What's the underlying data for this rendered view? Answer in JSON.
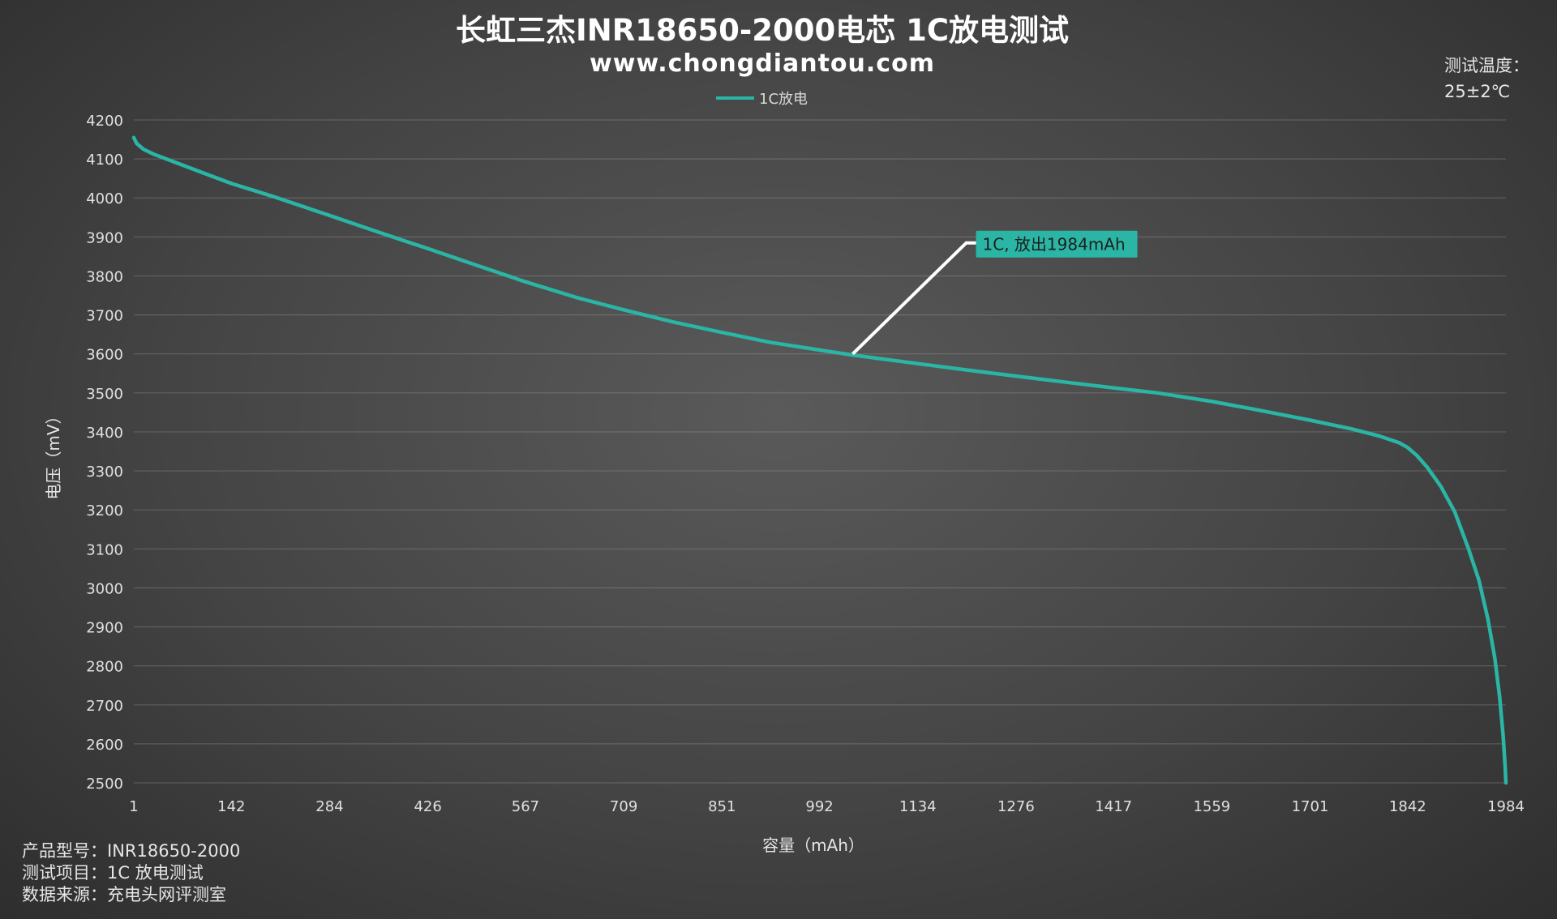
{
  "chart_data": {
    "type": "line",
    "title": "长虹三杰INR18650-2000电芯 1C放电测试",
    "subtitle": "www.chongdiantou.com",
    "xlabel": "容量（mAh）",
    "ylabel": "电压（mV）",
    "xlim": [
      1,
      1984
    ],
    "ylim": [
      2500,
      4200
    ],
    "x_ticks": [
      "1",
      "142",
      "284",
      "426",
      "567",
      "709",
      "851",
      "992",
      "1134",
      "1276",
      "1417",
      "1559",
      "1701",
      "1842",
      "1984"
    ],
    "y_ticks": [
      2500,
      2600,
      2700,
      2800,
      2900,
      3000,
      3100,
      3200,
      3300,
      3400,
      3500,
      3600,
      3700,
      3800,
      3900,
      4000,
      4100,
      4200
    ],
    "grid": true,
    "legend_position": "top-center",
    "series": [
      {
        "name": "1C放电",
        "color": "#2ab5a5",
        "x": [
          1,
          5,
          15,
          30,
          60,
          100,
          142,
          200,
          284,
          350,
          426,
          500,
          567,
          640,
          709,
          780,
          851,
          920,
          992,
          1040,
          1134,
          1200,
          1276,
          1350,
          1417,
          1480,
          1559,
          1620,
          1701,
          1760,
          1800,
          1830,
          1842,
          1855,
          1870,
          1890,
          1910,
          1930,
          1945,
          1958,
          1968,
          1975,
          1980,
          1983,
          1984
        ],
        "y": [
          4155,
          4140,
          4125,
          4112,
          4092,
          4065,
          4037,
          4005,
          3955,
          3915,
          3870,
          3825,
          3785,
          3745,
          3713,
          3682,
          3655,
          3630,
          3610,
          3597,
          3575,
          3560,
          3543,
          3527,
          3513,
          3500,
          3478,
          3458,
          3430,
          3408,
          3390,
          3372,
          3360,
          3340,
          3310,
          3260,
          3195,
          3100,
          3020,
          2920,
          2820,
          2720,
          2620,
          2540,
          2500
        ]
      }
    ],
    "annotation": {
      "text": "1C, 放出1984mAh",
      "x": 1040,
      "y": 3600,
      "bg_color": "#2ab5a5"
    }
  },
  "notes": {
    "temp_label": "测试温度：",
    "temp_value": "25±2℃",
    "model": "产品型号：INR18650-2000",
    "item": "测试项目：1C 放电测试",
    "source": "数据来源：充电头网评测室"
  }
}
